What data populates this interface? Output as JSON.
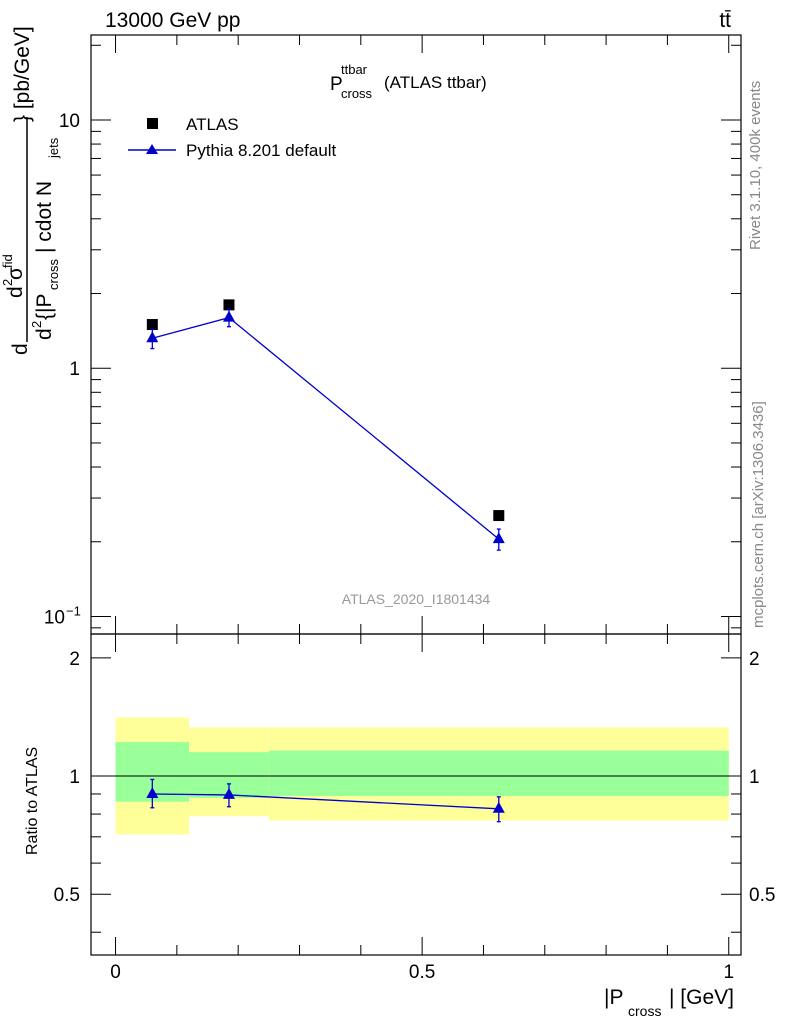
{
  "header": {
    "energy_label": "13000 GeV pp",
    "process_label": "tt̄"
  },
  "side_labels": {
    "rivet": "Rivet 3.1.10,  400k events",
    "mcplots": "mcplots.cern.ch [arXiv:1306.3436]"
  },
  "chart_data": [
    {
      "type": "scatter",
      "title": {
        "main": "P",
        "sup": "ttbar",
        "sub": "cross",
        "suffix": " (ATLAS ttbar)"
      },
      "ylabel": "d²σ^fid / d²{|P_cross| cdot N_jets} [pb/GeV]",
      "ylabel_parts": {
        "d1": "d",
        "sup2": "2",
        "sigma": "σ",
        "fid": "fid",
        "d2": "d",
        "brace_open": "{|P",
        "cross": "cross",
        "mid": "| cdot N",
        "jets": "jets",
        "unit": "} [pb/GeV]"
      },
      "yscale": "log",
      "ylim": [
        0.085,
        22
      ],
      "xlim": [
        -0.04,
        1.02
      ],
      "ytick_labels": [
        {
          "value": 10,
          "base": "10",
          "exp": ""
        },
        {
          "value": 1,
          "base": "1",
          "exp": ""
        },
        {
          "value": 0.1,
          "base": "10",
          "exp": "−1"
        }
      ],
      "watermark": "ATLAS_2020_I1801434",
      "legend_position": "top-left",
      "series": [
        {
          "name": "ATLAS",
          "marker": "square",
          "color": "#000000",
          "x": [
            0.06,
            0.185,
            0.625
          ],
          "y": [
            1.5,
            1.8,
            0.255
          ]
        },
        {
          "name": "Pythia 8.201 default",
          "marker": "triangle",
          "color": "#0000cc",
          "x": [
            0.06,
            0.185,
            0.625
          ],
          "y": [
            1.32,
            1.6,
            0.205
          ],
          "yerr_low": [
            0.12,
            0.13,
            0.02
          ],
          "yerr_high": [
            0.12,
            0.13,
            0.02
          ]
        }
      ]
    },
    {
      "type": "scatter",
      "ylabel": "Ratio to ATLAS",
      "xlabel_parts": {
        "pre": "|P",
        "sub": "cross",
        "post": "| [GeV]"
      },
      "ylim": [
        0.35,
        2.3
      ],
      "xlim": [
        -0.04,
        1.02
      ],
      "ytick_labels": [
        "0.5",
        "1",
        "2"
      ],
      "ytick_values": [
        0.5,
        1,
        2
      ],
      "xtick_labels": [
        "0",
        "0.5",
        "1"
      ],
      "xtick_values": [
        0,
        0.5,
        1
      ],
      "reference_line": 1,
      "bands": [
        {
          "x0": 0.0,
          "x1": 0.12,
          "yellow": [
            0.71,
            1.41
          ],
          "green": [
            0.86,
            1.22
          ]
        },
        {
          "x0": 0.12,
          "x1": 0.25,
          "yellow": [
            0.79,
            1.33
          ],
          "green": [
            0.88,
            1.15
          ]
        },
        {
          "x0": 0.25,
          "x1": 1.0,
          "yellow": [
            0.77,
            1.33
          ],
          "green": [
            0.89,
            1.16
          ]
        }
      ],
      "colors": {
        "yellow": "#ffff99",
        "green": "#99ff99",
        "mc": "#0000cc"
      },
      "series": [
        {
          "name": "Pythia 8.201 default",
          "x": [
            0.06,
            0.185,
            0.625
          ],
          "y": [
            0.9,
            0.895,
            0.825
          ],
          "yerr_low": [
            0.07,
            0.06,
            0.06
          ],
          "yerr_high": [
            0.08,
            0.06,
            0.06
          ]
        }
      ]
    }
  ]
}
